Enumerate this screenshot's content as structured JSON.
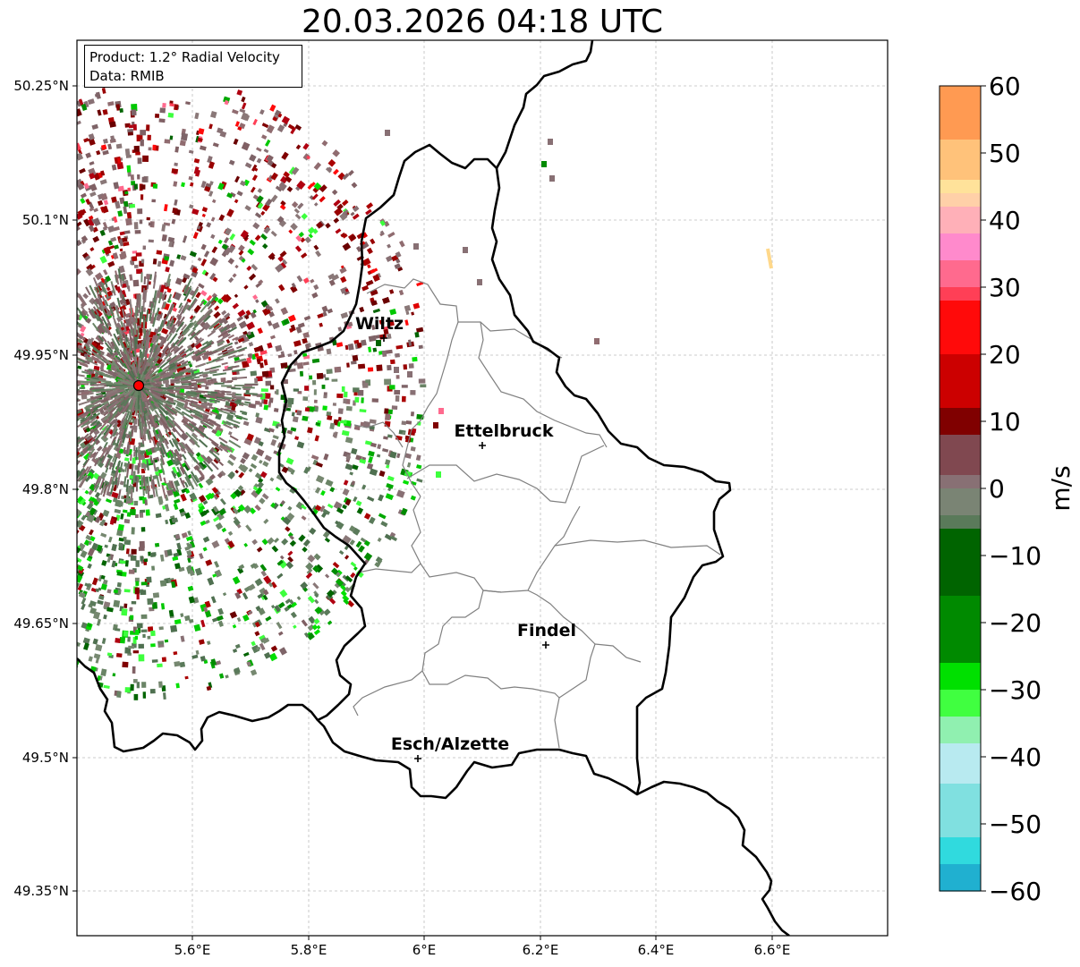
{
  "title": "20.03.2026 04:18 UTC",
  "info": {
    "product": "Product: 1.2° Radial Velocity",
    "data_source": "Data: RMIB"
  },
  "axes": {
    "lon_ticks": [
      "5.6°E",
      "5.8°E",
      "6°E",
      "6.2°E",
      "6.4°E",
      "6.6°E"
    ],
    "lat_ticks": [
      "50.25°N",
      "50.1°N",
      "49.95°N",
      "49.8°N",
      "49.65°N",
      "49.5°N",
      "49.35°N"
    ],
    "grid": true
  },
  "cities": [
    {
      "name": "Wiltz",
      "lon": 5.93,
      "lat": 49.97
    },
    {
      "name": "Ettelbruck",
      "lon": 6.1,
      "lat": 49.85
    },
    {
      "name": "Findel",
      "lon": 6.21,
      "lat": 49.63
    },
    {
      "name": "Esch/Alzette",
      "lon": 5.99,
      "lat": 49.5
    }
  ],
  "radar_site": {
    "lon": 5.505,
    "lat": 49.915,
    "color": "#ff0000"
  },
  "colorbar": {
    "label": "m/s",
    "ticks": [
      "60",
      "50",
      "40",
      "30",
      "20",
      "10",
      "0",
      "−10",
      "−20",
      "−30",
      "−40",
      "−50",
      "−60"
    ],
    "min": -60,
    "max": 60,
    "stops": [
      {
        "v": 60,
        "color": "#ff9a52"
      },
      {
        "v": 52,
        "color": "#ffc27a"
      },
      {
        "v": 47,
        "color": "#ffe29a"
      },
      {
        "v": 44,
        "color": "#ffd0a8"
      },
      {
        "v": 42,
        "color": "#ffb0b8"
      },
      {
        "v": 38,
        "color": "#ff8acc"
      },
      {
        "v": 34,
        "color": "#ff6a8e"
      },
      {
        "v": 30,
        "color": "#ff3f56"
      },
      {
        "v": 28,
        "color": "#ff0a0a"
      },
      {
        "v": 20,
        "color": "#cc0000"
      },
      {
        "v": 12,
        "color": "#800000"
      },
      {
        "v": 8,
        "color": "#804850"
      },
      {
        "v": 3,
        "color": "#887074"
      },
      {
        "v": 0,
        "color": "#7a8474"
      },
      {
        "v": -4,
        "color": "#5a7a5a"
      },
      {
        "v": -6,
        "color": "#006400"
      },
      {
        "v": -15,
        "color": "#008a00"
      },
      {
        "v": -25,
        "color": "#00e000"
      },
      {
        "v": -30,
        "color": "#40ff40"
      },
      {
        "v": -34,
        "color": "#90f0b0"
      },
      {
        "v": -37,
        "color": "#b8eaf0"
      },
      {
        "v": -44,
        "color": "#80e0e0"
      },
      {
        "v": -52,
        "color": "#30dade"
      },
      {
        "v": -56,
        "color": "#20b0d0"
      },
      {
        "v": -60,
        "color": "#1f78c0"
      }
    ]
  }
}
